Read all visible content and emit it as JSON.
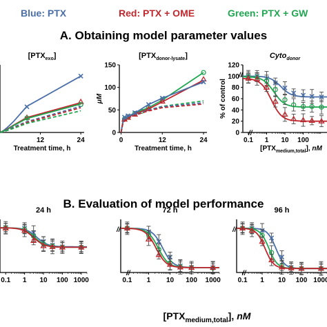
{
  "legend": {
    "blue": "Blue: PTX",
    "red": "Red: PTX + OME",
    "green": "Green: PTX + GW"
  },
  "colors": {
    "blue": "#4a6fa8",
    "red": "#c0272d",
    "green": "#21a651"
  },
  "section_a_title": "A. Obtaining model parameter values",
  "section_b_title": "B. Evaluation of model performance",
  "bottom_xlabel": {
    "prefix": "[PTX",
    "sub": "medium,total",
    "suffix": "],",
    "unit": "nM"
  },
  "chart_data": [
    {
      "id": "a1",
      "type": "line",
      "title": "[PTXexo]",
      "title_main": "[PTX",
      "title_sub": "exo",
      "title_end": "]",
      "xlabel": "Treatment time, h",
      "ylabel": "",
      "xlim": [
        0,
        25
      ],
      "ylim": [
        0,
        150
      ],
      "xticks": [
        12,
        24
      ],
      "yticks": [],
      "xscale": "linear",
      "grid": false,
      "axis_break": false,
      "series": [
        {
          "color": "blue",
          "marker": "x",
          "dashed": false,
          "x": [
            0,
            1,
            2,
            4,
            8,
            24
          ],
          "y": [
            0,
            4,
            10,
            24,
            58,
            125
          ],
          "px": [
            8,
            24
          ],
          "py": [
            57,
            125
          ]
        },
        {
          "color": "red",
          "marker": "triangle",
          "dashed": false,
          "x": [
            0,
            1,
            2,
            4,
            8,
            24
          ],
          "y": [
            0,
            3,
            7,
            16,
            33,
            66
          ],
          "px": [
            8,
            24
          ],
          "py": [
            33,
            68
          ]
        },
        {
          "color": "green",
          "marker": "circle",
          "dashed": false,
          "x": [
            0,
            1,
            2,
            4,
            8,
            24
          ],
          "y": [
            0,
            3,
            6,
            15,
            31,
            63
          ],
          "px": [
            8,
            24
          ],
          "py": [
            32,
            62
          ]
        },
        {
          "color": "blue",
          "marker": "none",
          "dashed": true,
          "x": [
            0,
            1,
            2,
            4,
            8,
            24
          ],
          "y": [
            0,
            2,
            5,
            12,
            24,
            58
          ],
          "px": [],
          "py": []
        },
        {
          "color": "red",
          "marker": "none",
          "dashed": true,
          "x": [
            0,
            1,
            2,
            4,
            8,
            24
          ],
          "y": [
            0,
            2,
            4,
            10,
            22,
            55
          ],
          "px": [],
          "py": []
        },
        {
          "color": "green",
          "marker": "none",
          "dashed": true,
          "x": [
            0,
            1,
            2,
            4,
            8,
            24
          ],
          "y": [
            0,
            2,
            4,
            9,
            20,
            48
          ],
          "px": [],
          "py": []
        }
      ]
    },
    {
      "id": "a2",
      "type": "line",
      "title": "[PTXdonor-lysate]",
      "title_main": "[PTX",
      "title_sub": "donor-lysate",
      "title_end": "]",
      "xlabel": "Treatment time, h",
      "ylabel": "μM",
      "xlim": [
        -0.5,
        25
      ],
      "ylim": [
        0,
        150
      ],
      "xticks": [
        0,
        12,
        24
      ],
      "yticks": [
        0,
        50,
        100,
        150
      ],
      "xscale": "linear",
      "grid": false,
      "axis_break": false,
      "series": [
        {
          "color": "green",
          "marker": "circle",
          "dashed": false,
          "x": [
            0,
            0.5,
            1,
            2,
            4,
            8,
            12,
            24
          ],
          "y": [
            0,
            23,
            30,
            36,
            43,
            55,
            72,
            133
          ],
          "px": [
            1,
            2,
            4,
            6,
            8,
            12,
            24
          ],
          "py": [
            30,
            35,
            42,
            47,
            55,
            73,
            133
          ]
        },
        {
          "color": "red",
          "marker": "triangle",
          "dashed": false,
          "x": [
            0,
            0.5,
            1,
            2,
            4,
            8,
            12,
            24
          ],
          "y": [
            0,
            22,
            29,
            34,
            41,
            52,
            68,
            116
          ],
          "px": [
            1,
            2,
            4,
            8,
            12,
            24
          ],
          "py": [
            29,
            33,
            40,
            52,
            69,
            118
          ]
        },
        {
          "color": "blue",
          "marker": "x",
          "dashed": false,
          "x": [
            0,
            0.5,
            1,
            2,
            4,
            8,
            12,
            24
          ],
          "y": [
            0,
            22,
            30,
            35,
            43,
            62,
            76,
            112
          ],
          "px": [
            1,
            2,
            4,
            8,
            12,
            24
          ],
          "py": [
            34,
            37,
            44,
            62,
            76,
            112
          ]
        },
        {
          "color": "green",
          "marker": "none",
          "dashed": true,
          "x": [
            0,
            0.5,
            1,
            2,
            4,
            8,
            12,
            24
          ],
          "y": [
            0,
            20,
            27,
            33,
            39,
            50,
            58,
            70
          ],
          "px": [],
          "py": []
        },
        {
          "color": "blue",
          "marker": "none",
          "dashed": true,
          "x": [
            0,
            0.5,
            1,
            2,
            4,
            8,
            12,
            24
          ],
          "y": [
            0,
            20,
            27,
            33,
            39,
            50,
            57,
            66
          ],
          "px": [],
          "py": []
        },
        {
          "color": "red",
          "marker": "none",
          "dashed": true,
          "x": [
            0,
            0.5,
            1,
            2,
            4,
            8,
            12,
            24
          ],
          "y": [
            0,
            19,
            26,
            32,
            38,
            48,
            55,
            63
          ],
          "px": [],
          "py": []
        }
      ]
    },
    {
      "id": "a3",
      "type": "line",
      "title": "Cytodonor",
      "title_main": "Cyto",
      "title_sub": "donor",
      "title_end": "",
      "xlabel": "[PTXmedium,total], nM",
      "ylabel": "% of control",
      "xlim": [
        0.05,
        2000
      ],
      "ylim": [
        0,
        120
      ],
      "xticks": [
        0.1,
        1,
        10,
        100
      ],
      "yticks": [
        0,
        20,
        40,
        60,
        80,
        100,
        120
      ],
      "xscale": "log",
      "grid": false,
      "axis_break": true,
      "series": [
        {
          "color": "blue",
          "marker": "x",
          "dashed": false,
          "fit": {
            "top": 100,
            "bottom": 63,
            "ec50": 6,
            "hill": 1.5
          },
          "px": [
            0.1,
            0.3,
            1,
            3,
            10,
            30,
            100,
            300,
            1000
          ],
          "py": [
            100,
            100,
            96,
            88,
            79,
            70,
            66,
            64,
            63
          ]
        },
        {
          "color": "green",
          "marker": "circle",
          "dashed": false,
          "fit": {
            "top": 99,
            "bottom": 45,
            "ec50": 2.5,
            "hill": 1.5
          },
          "px": [
            0.1,
            0.3,
            1,
            3,
            10,
            30,
            100,
            300,
            1000
          ],
          "py": [
            99,
            98,
            92,
            76,
            58,
            49,
            46,
            46,
            45
          ]
        },
        {
          "color": "red",
          "marker": "triangle",
          "dashed": false,
          "fit": {
            "top": 96,
            "bottom": 20,
            "ec50": 1.8,
            "hill": 1.5
          },
          "px": [
            0.1,
            0.3,
            1,
            3,
            10,
            30,
            100,
            300,
            1000
          ],
          "py": [
            96,
            95,
            80,
            55,
            32,
            24,
            22,
            21,
            20
          ]
        }
      ]
    },
    {
      "id": "b1",
      "type": "line",
      "title": "24 h",
      "title_main": "24 h",
      "title_sub": "",
      "title_end": "",
      "xlabel": "",
      "ylabel": "",
      "xlim": [
        0.05,
        2000
      ],
      "ylim": [
        0,
        120
      ],
      "xticks": [
        0.1,
        1,
        10,
        100,
        1000
      ],
      "yticks": [],
      "xscale": "log",
      "grid": false,
      "axis_break": false,
      "series": [
        {
          "color": "blue",
          "marker": "x",
          "dashed": false,
          "fit": {
            "top": 101,
            "bottom": 58,
            "ec50": 4.5,
            "hill": 1.5
          },
          "px": [
            0.1,
            1,
            3,
            10,
            30,
            100,
            1000
          ],
          "py": [
            102,
            100,
            90,
            70,
            62,
            58,
            57
          ]
        },
        {
          "color": "green",
          "marker": "circle",
          "dashed": false,
          "fit": {
            "top": 101,
            "bottom": 57,
            "ec50": 3.5,
            "hill": 1.5
          },
          "px": [
            0.1,
            1,
            3,
            10,
            30,
            100,
            1000
          ],
          "py": [
            101,
            98,
            82,
            65,
            60,
            57,
            57
          ]
        },
        {
          "color": "red",
          "marker": "triangle",
          "dashed": false,
          "fit": {
            "top": 101,
            "bottom": 57,
            "ec50": 3,
            "hill": 1.5
          },
          "px": [
            0.1,
            1,
            3,
            10,
            30,
            100,
            1000
          ],
          "py": [
            100,
            95,
            72,
            60,
            58,
            57,
            57
          ]
        }
      ]
    },
    {
      "id": "b2",
      "type": "line",
      "title": "72 h",
      "title_main": "72 h",
      "title_sub": "",
      "title_end": "",
      "xlabel": "",
      "ylabel": "",
      "xlim": [
        0.05,
        2000
      ],
      "ylim": [
        0,
        120
      ],
      "xticks": [
        0.1,
        1,
        10,
        100,
        1000
      ],
      "yticks": [],
      "xscale": "log",
      "grid": false,
      "axis_break": true,
      "series": [
        {
          "color": "blue",
          "marker": "x",
          "dashed": false,
          "fit": {
            "top": 100,
            "bottom": 11,
            "ec50": 4.5,
            "hill": 1.8
          },
          "px": [
            0.1,
            1,
            3,
            10,
            30,
            100,
            1000
          ],
          "py": [
            100,
            92,
            70,
            35,
            15,
            12,
            11
          ]
        },
        {
          "color": "green",
          "marker": "circle",
          "dashed": false,
          "fit": {
            "top": 100,
            "bottom": 11,
            "ec50": 2.8,
            "hill": 1.8
          },
          "px": [
            0.1,
            1,
            3,
            10,
            30,
            100,
            1000
          ],
          "py": [
            100,
            85,
            52,
            22,
            13,
            11,
            10
          ]
        },
        {
          "color": "red",
          "marker": "triangle",
          "dashed": false,
          "fit": {
            "top": 100,
            "bottom": 11,
            "ec50": 2.2,
            "hill": 1.8
          },
          "px": [
            0.1,
            1,
            3,
            10,
            30,
            100,
            1000
          ],
          "py": [
            100,
            75,
            40,
            18,
            12,
            11,
            11
          ]
        }
      ]
    },
    {
      "id": "b3",
      "type": "line",
      "title": "96 h",
      "title_main": "96 h",
      "title_sub": "",
      "title_end": "",
      "xlabel": "",
      "ylabel": "",
      "xlim": [
        0.05,
        2000
      ],
      "ylim": [
        0,
        120
      ],
      "xticks": [
        0.1,
        1,
        10,
        100,
        1000
      ],
      "yticks": [],
      "xscale": "log",
      "grid": false,
      "axis_break": true,
      "series": [
        {
          "color": "blue",
          "marker": "x",
          "dashed": false,
          "fit": {
            "top": 100,
            "bottom": 9,
            "ec50": 5,
            "hill": 2
          },
          "px": [
            0.1,
            0.3,
            1,
            3,
            10,
            30,
            100,
            1000
          ],
          "py": [
            100,
            100,
            95,
            78,
            35,
            12,
            9,
            9
          ]
        },
        {
          "color": "green",
          "marker": "circle",
          "dashed": false,
          "fit": {
            "top": 100,
            "bottom": 9,
            "ec50": 2.2,
            "hill": 2
          },
          "px": [
            0.1,
            0.3,
            1,
            3,
            10,
            30,
            100,
            1000
          ],
          "py": [
            100,
            98,
            84,
            45,
            15,
            10,
            9,
            9
          ]
        },
        {
          "color": "red",
          "marker": "triangle",
          "dashed": false,
          "fit": {
            "top": 100,
            "bottom": 9,
            "ec50": 1.4,
            "hill": 2
          },
          "px": [
            0.1,
            0.3,
            1,
            3,
            10,
            30,
            100,
            1000
          ],
          "py": [
            100,
            95,
            70,
            28,
            12,
            10,
            9,
            9
          ]
        }
      ]
    }
  ]
}
